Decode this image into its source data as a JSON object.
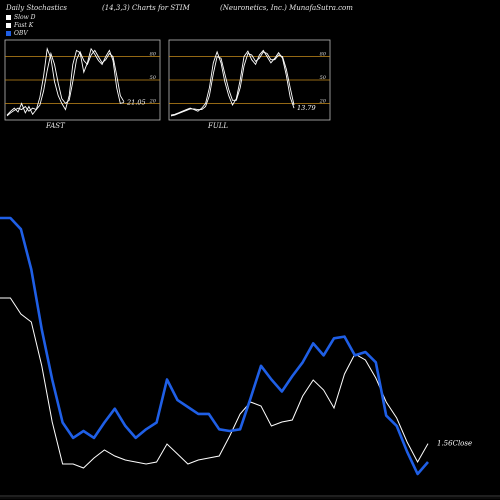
{
  "header": {
    "left": "Daily Stochastics",
    "middle": "(14,3,3) Charts for STIM",
    "right": "(Neuronetics, Inc.) MunafaSutra.com"
  },
  "legend": [
    {
      "label": "Slow  D",
      "color": "#ffffff"
    },
    {
      "label": "Fast K",
      "color": "#ffffff"
    },
    {
      "label": "OBV",
      "color": "#1f5fe6"
    }
  ],
  "chart_data": [
    {
      "type": "line",
      "name": "FAST",
      "levels": [
        "80",
        "50",
        "20"
      ],
      "ylim": [
        0,
        100
      ],
      "last_label": "21.05",
      "series": [
        {
          "name": "Fast K",
          "values": [
            5,
            10,
            14,
            9,
            20,
            8,
            16,
            6,
            12,
            28,
            55,
            90,
            78,
            48,
            30,
            20,
            12,
            30,
            70,
            88,
            85,
            60,
            72,
            90,
            83,
            75,
            70,
            80,
            88,
            75,
            40,
            20,
            21
          ]
        },
        {
          "name": "Slow  D",
          "values": [
            4,
            8,
            11,
            14,
            12,
            16,
            10,
            14,
            12,
            18,
            36,
            62,
            84,
            70,
            46,
            26,
            20,
            24,
            48,
            76,
            86,
            75,
            70,
            82,
            88,
            80,
            72,
            76,
            84,
            80,
            56,
            30,
            22
          ]
        }
      ]
    },
    {
      "type": "line",
      "name": "FULL",
      "levels": [
        "80",
        "50",
        "20"
      ],
      "ylim": [
        0,
        100
      ],
      "last_label": "13.79",
      "series": [
        {
          "name": "Full K",
          "values": [
            5,
            6,
            8,
            10,
            12,
            14,
            12,
            10,
            14,
            20,
            40,
            72,
            86,
            72,
            48,
            30,
            18,
            26,
            50,
            80,
            87,
            76,
            70,
            82,
            88,
            80,
            72,
            78,
            85,
            78,
            56,
            28,
            14
          ]
        },
        {
          "name": "Full D",
          "values": [
            4,
            5,
            7,
            9,
            11,
            13,
            13,
            12,
            12,
            16,
            30,
            58,
            80,
            78,
            58,
            38,
            24,
            24,
            40,
            68,
            84,
            82,
            74,
            78,
            86,
            84,
            76,
            76,
            82,
            80,
            64,
            40,
            18
          ]
        }
      ]
    },
    {
      "type": "line",
      "name": "price-obv",
      "last_label": "1.56Close",
      "x": [
        0,
        1,
        2,
        3,
        4,
        5,
        6,
        7,
        8,
        9,
        10,
        11,
        12,
        13,
        14,
        15,
        16,
        17,
        18,
        19,
        20,
        21,
        22,
        23,
        24,
        25,
        26,
        27,
        28,
        29,
        30,
        31,
        32,
        33,
        34,
        35,
        36,
        37,
        38,
        39,
        40,
        41
      ],
      "series": [
        {
          "name": "Close",
          "values": [
            5.2,
            5.2,
            4.8,
            4.6,
            3.5,
            2.1,
            1.05,
            1.05,
            0.95,
            1.2,
            1.4,
            1.25,
            1.15,
            1.1,
            1.05,
            1.1,
            1.55,
            1.3,
            1.05,
            1.15,
            1.2,
            1.25,
            1.75,
            2.3,
            2.6,
            2.5,
            2.0,
            2.1,
            2.15,
            2.75,
            3.15,
            2.9,
            2.45,
            3.3,
            3.8,
            3.65,
            3.2,
            2.6,
            2.2,
            1.6,
            1.1,
            1.56
          ]
        },
        {
          "name": "OBV",
          "values": [
            860,
            860,
            795,
            560,
            210,
            -80,
            -330,
            -420,
            -380,
            -420,
            -330,
            -250,
            -350,
            -420,
            -370,
            -330,
            -80,
            -200,
            -240,
            -280,
            -280,
            -370,
            -380,
            -370,
            -190,
            0,
            -80,
            -150,
            -60,
            20,
            130,
            60,
            160,
            170,
            60,
            80,
            20,
            -290,
            -350,
            -500,
            -630,
            -560
          ]
        }
      ]
    }
  ]
}
